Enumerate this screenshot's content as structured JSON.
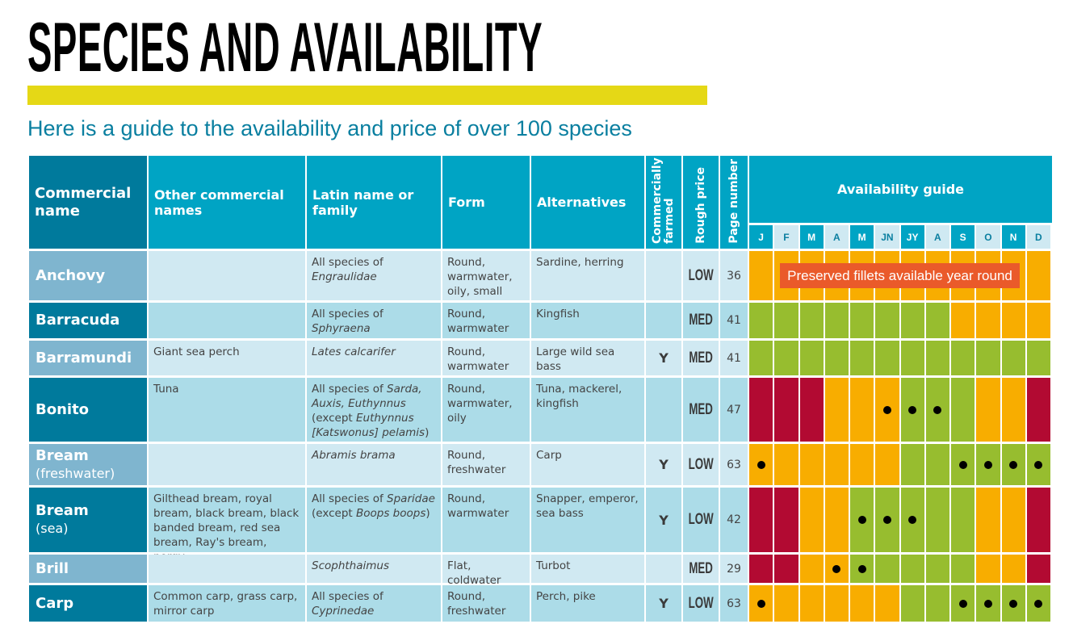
{
  "title": "SPECIES AND AVAILABILITY",
  "subtitle": "Here is a guide to the availability and price of over 100 species",
  "colors": {
    "accent_yellow": "#e5d816",
    "header": "#00a4c4",
    "header_dark": "#007a9c",
    "in_season": "#97bd2f",
    "available": "#f8ad00",
    "avoid": "#b20a32",
    "banner": "#ea5a2a"
  },
  "headers": {
    "commercial_name": "Commercial name",
    "other_names": "Other commercial names",
    "latin": "Latin name or family",
    "form": "Form",
    "alternatives": "Alternatives",
    "farmed": "Commercially farmed",
    "price": "Rough price",
    "page": "Page number",
    "availability": "Availability guide",
    "months": [
      "J",
      "F",
      "M",
      "A",
      "M",
      "JN",
      "JY",
      "A",
      "S",
      "O",
      "N",
      "D"
    ]
  },
  "legend_note": "Preserved fillets available year round",
  "rows": [
    {
      "name": "Anchovy",
      "sub": "",
      "other": "",
      "latin": [
        {
          "t": "All species of "
        },
        {
          "t": "Engraulidae",
          "i": true
        }
      ],
      "form": "Round, warmwater, oily, small",
      "alternatives": "Sardine, herring",
      "farmed": "",
      "price": "LOW",
      "page": "36",
      "months": [
        "O",
        "O",
        "O",
        "O",
        "O",
        "O",
        "O",
        "O",
        "O",
        "O",
        "O",
        "O"
      ],
      "dots": [
        0,
        0,
        0,
        0,
        0,
        0,
        0,
        0,
        0,
        0,
        0,
        0
      ],
      "note": true
    },
    {
      "name": "Barracuda",
      "sub": "",
      "other": "",
      "latin": [
        {
          "t": "All species of "
        },
        {
          "t": "Sphyraena",
          "i": true
        }
      ],
      "form": "Round, warmwater",
      "alternatives": "Kingfish",
      "farmed": "",
      "price": "MED",
      "page": "41",
      "months": [
        "G",
        "G",
        "G",
        "G",
        "G",
        "G",
        "G",
        "G",
        "O",
        "O",
        "O",
        "O"
      ],
      "dots": [
        0,
        0,
        0,
        0,
        0,
        0,
        0,
        0,
        0,
        0,
        0,
        0
      ]
    },
    {
      "name": "Barramundi",
      "sub": "",
      "other": "Giant sea perch",
      "latin": [
        {
          "t": "Lates calcarifer",
          "i": true
        }
      ],
      "form": "Round, warmwater",
      "alternatives": "Large wild sea bass",
      "farmed": "Y",
      "price": "MED",
      "page": "41",
      "months": [
        "G",
        "G",
        "G",
        "G",
        "G",
        "G",
        "G",
        "G",
        "G",
        "G",
        "G",
        "G"
      ],
      "dots": [
        0,
        0,
        0,
        0,
        0,
        0,
        0,
        0,
        0,
        0,
        0,
        0
      ]
    },
    {
      "name": "Bonito",
      "sub": "",
      "other": "Tuna",
      "latin": [
        {
          "t": "All species of "
        },
        {
          "t": "Sarda, Auxis, Euthynnus",
          "i": true
        },
        {
          "t": " (except "
        },
        {
          "t": "Euthynnus [Katswonus] pelamis",
          "i": true
        },
        {
          "t": ")"
        }
      ],
      "form": "Round, warmwater, oily",
      "alternatives": "Tuna, mackerel, kingfish",
      "farmed": "",
      "price": "MED",
      "page": "47",
      "months": [
        "R",
        "R",
        "R",
        "O",
        "O",
        "O",
        "G",
        "G",
        "G",
        "O",
        "O",
        "R"
      ],
      "dots": [
        0,
        0,
        0,
        0,
        0,
        1,
        1,
        1,
        0,
        0,
        0,
        0
      ]
    },
    {
      "name": "Bream",
      "sub": "(freshwater)",
      "other": "",
      "latin": [
        {
          "t": "Abramis brama",
          "i": true
        }
      ],
      "form": "Round, freshwater",
      "alternatives": "Carp",
      "farmed": "Y",
      "price": "LOW",
      "page": "63",
      "months": [
        "O",
        "O",
        "O",
        "O",
        "O",
        "O",
        "G",
        "G",
        "G",
        "G",
        "G",
        "G"
      ],
      "dots": [
        1,
        0,
        0,
        0,
        0,
        0,
        0,
        0,
        1,
        1,
        1,
        1
      ]
    },
    {
      "name": "Bream",
      "sub": "(sea)",
      "other": "Gilthead bream, royal bream, black bream, black banded bream, red sea bream, Ray's bream, porgy",
      "latin": [
        {
          "t": "All species of "
        },
        {
          "t": "Sparidae",
          "i": true
        },
        {
          "t": " (except "
        },
        {
          "t": "Boops boops",
          "i": true
        },
        {
          "t": ")"
        }
      ],
      "form": "Round, warmwater",
      "alternatives": "Snapper, emperor, sea bass",
      "farmed": "Y",
      "price": "LOW",
      "page": "42",
      "months": [
        "R",
        "R",
        "O",
        "O",
        "G",
        "G",
        "G",
        "G",
        "G",
        "O",
        "O",
        "R"
      ],
      "dots": [
        0,
        0,
        0,
        0,
        1,
        1,
        1,
        0,
        0,
        0,
        0,
        0
      ]
    },
    {
      "name": "Brill",
      "sub": "",
      "other": "",
      "latin": [
        {
          "t": "Scophthaimus",
          "i": true
        }
      ],
      "form": "Flat, coldwater",
      "alternatives": "Turbot",
      "farmed": "",
      "price": "MED",
      "page": "29",
      "months": [
        "R",
        "R",
        "O",
        "O",
        "G",
        "G",
        "G",
        "G",
        "G",
        "O",
        "O",
        "R"
      ],
      "dots": [
        0,
        0,
        0,
        1,
        1,
        0,
        0,
        0,
        0,
        0,
        0,
        0
      ]
    },
    {
      "name": "Carp",
      "sub": "",
      "other": "Common carp, grass carp, mirror carp",
      "latin": [
        {
          "t": "All species of "
        },
        {
          "t": "Cyprinedae",
          "i": true
        }
      ],
      "form": "Round, freshwater",
      "alternatives": "Perch, pike",
      "farmed": "Y",
      "price": "LOW",
      "page": "63",
      "months": [
        "O",
        "O",
        "O",
        "O",
        "O",
        "O",
        "G",
        "G",
        "G",
        "G",
        "G",
        "G"
      ],
      "dots": [
        1,
        0,
        0,
        0,
        0,
        0,
        0,
        0,
        1,
        1,
        1,
        1
      ]
    }
  ]
}
